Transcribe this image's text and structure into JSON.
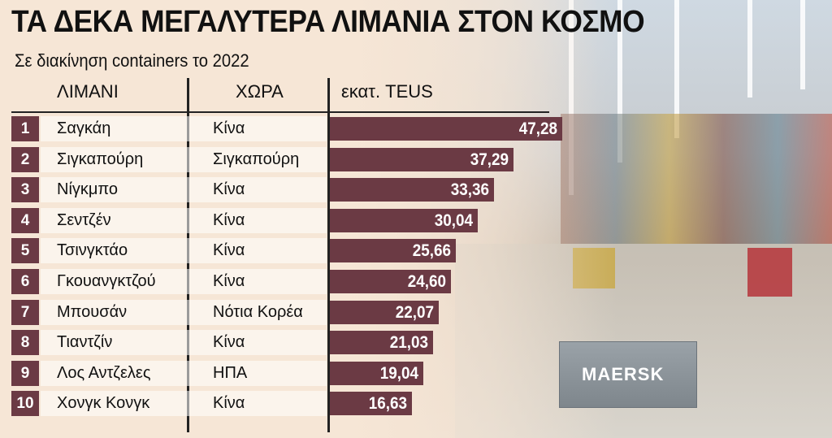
{
  "title": "ΤΑ ΔΕΚΑ ΜΕΓΑΛΥΤΕΡΑ ΛΙΜΑΝΙΑ ΣΤΟΝ ΚΟΣΜΟ",
  "subtitle": "Σε διακίνηση containers το 2022",
  "headers": {
    "port": "ΛΙΜΑΝΙ",
    "country": "ΧΩΡΑ",
    "value": "εκατ. TEUS"
  },
  "photo_text": "MAERSK",
  "colors": {
    "bar": "#6b3a44",
    "rank_box": "#6b3a44",
    "background": "#f6e6d6"
  },
  "chart_data": {
    "type": "bar",
    "orientation": "horizontal",
    "title": "ΤΑ ΔΕΚΑ ΜΕΓΑΛΥΤΕΡΑ ΛΙΜΑΝΙΑ ΣΤΟΝ ΚΟΣΜΟ",
    "subtitle": "Σε διακίνηση containers το 2022",
    "unit": "εκατ. TEUS",
    "rows": [
      {
        "rank": "1",
        "port": "Σαγκάη",
        "country": "Κίνα",
        "value": 47.28,
        "label": "47,28"
      },
      {
        "rank": "2",
        "port": "Σιγκαπούρη",
        "country": "Σιγκαπούρη",
        "value": 37.29,
        "label": "37,29"
      },
      {
        "rank": "3",
        "port": "Νίγκμπο",
        "country": "Κίνα",
        "value": 33.36,
        "label": "33,36"
      },
      {
        "rank": "4",
        "port": "Σεντζέν",
        "country": "Κίνα",
        "value": 30.04,
        "label": "30,04"
      },
      {
        "rank": "5",
        "port": "Τσινγκτάο",
        "country": "Κίνα",
        "value": 25.66,
        "label": "25,66"
      },
      {
        "rank": "6",
        "port": "Γκουανγκτζού",
        "country": "Κίνα",
        "value": 24.6,
        "label": "24,60"
      },
      {
        "rank": "7",
        "port": "Μπουσάν",
        "country": "Νότια Κορέα",
        "value": 22.07,
        "label": "22,07"
      },
      {
        "rank": "8",
        "port": "Τιαντζίν",
        "country": "Κίνα",
        "value": 21.03,
        "label": "21,03"
      },
      {
        "rank": "9",
        "port": "Λος Αντζελες",
        "country": "ΗΠΑ",
        "value": 19.04,
        "label": "19,04"
      },
      {
        "rank": "10",
        "port": "Χονγκ Κονγκ",
        "country": "Κίνα",
        "value": 16.63,
        "label": "16,63"
      }
    ],
    "xlim": [
      0,
      47.28
    ]
  }
}
